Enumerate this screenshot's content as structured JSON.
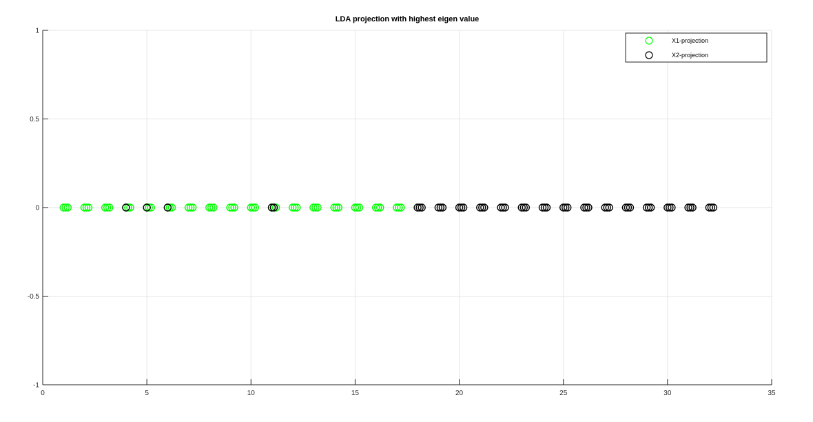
{
  "chart_data": {
    "type": "scatter",
    "title": "LDA projection with highest eigen value",
    "xlabel": "",
    "ylabel": "",
    "xlim": [
      0,
      35
    ],
    "ylim": [
      -1,
      1
    ],
    "xticks": [
      "0",
      "5",
      "10",
      "15",
      "20",
      "25",
      "30",
      "35"
    ],
    "yticks": [
      "1",
      "0.5",
      "0",
      "-0.5",
      "-1"
    ],
    "grid": true,
    "legend_position": "top-right",
    "series": [
      {
        "name": "X1-projection",
        "color": "#00ff00",
        "marker": "open-circle",
        "x": [
          1.0,
          1.1,
          1.2,
          2.0,
          2.1,
          2.2,
          3.0,
          3.1,
          3.2,
          4.0,
          4.1,
          4.2,
          5.0,
          5.1,
          5.2,
          6.0,
          6.1,
          6.2,
          7.0,
          7.1,
          7.2,
          8.0,
          8.1,
          8.2,
          9.0,
          9.1,
          9.2,
          10.0,
          10.1,
          10.2,
          11.0,
          11.1,
          11.2,
          12.0,
          12.1,
          12.2,
          13.0,
          13.1,
          13.2,
          14.0,
          14.1,
          14.2,
          15.0,
          15.1,
          15.2,
          16.0,
          16.1,
          16.2,
          17.0,
          17.1,
          17.2
        ],
        "y": [
          0,
          0,
          0,
          0,
          0,
          0,
          0,
          0,
          0,
          0,
          0,
          0,
          0,
          0,
          0,
          0,
          0,
          0,
          0,
          0,
          0,
          0,
          0,
          0,
          0,
          0,
          0,
          0,
          0,
          0,
          0,
          0,
          0,
          0,
          0,
          0,
          0,
          0,
          0,
          0,
          0,
          0,
          0,
          0,
          0,
          0,
          0,
          0,
          0,
          0,
          0
        ]
      },
      {
        "name": "X2-projection",
        "color": "#000000",
        "marker": "open-circle",
        "x": [
          4.0,
          5.0,
          6.0,
          11.0,
          11.1,
          18.0,
          18.1,
          18.2,
          19.0,
          19.1,
          19.2,
          20.0,
          20.1,
          20.2,
          21.0,
          21.1,
          21.2,
          22.0,
          22.1,
          22.2,
          23.0,
          23.1,
          23.2,
          24.0,
          24.1,
          24.2,
          25.0,
          25.1,
          25.2,
          26.0,
          26.1,
          26.2,
          27.0,
          27.1,
          27.2,
          28.0,
          28.1,
          28.2,
          29.0,
          29.1,
          29.2,
          30.0,
          30.1,
          30.2,
          31.0,
          31.1,
          31.2,
          32.0,
          32.1,
          32.2
        ],
        "y": [
          0,
          0,
          0,
          0,
          0,
          0,
          0,
          0,
          0,
          0,
          0,
          0,
          0,
          0,
          0,
          0,
          0,
          0,
          0,
          0,
          0,
          0,
          0,
          0,
          0,
          0,
          0,
          0,
          0,
          0,
          0,
          0,
          0,
          0,
          0,
          0,
          0,
          0,
          0,
          0,
          0,
          0,
          0,
          0,
          0,
          0,
          0,
          0,
          0,
          0
        ]
      }
    ]
  }
}
